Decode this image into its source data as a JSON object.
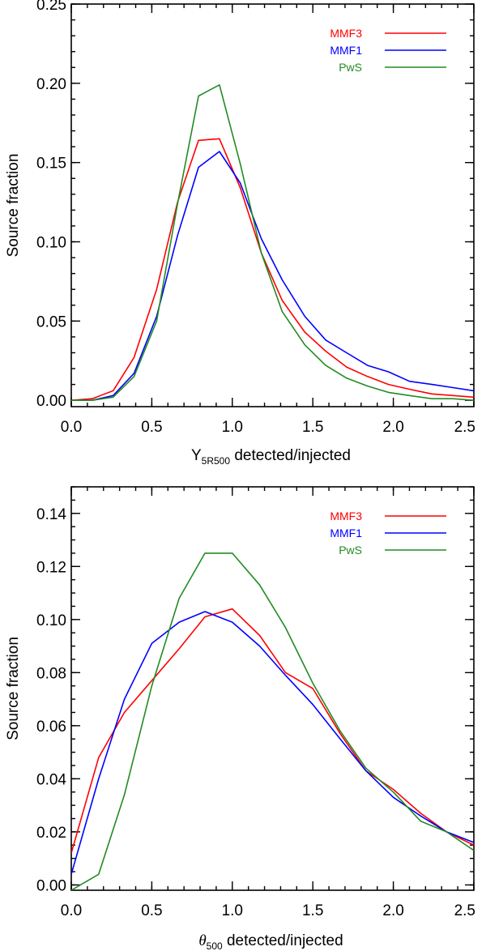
{
  "chart_data": [
    {
      "type": "line",
      "xlabel_main": "Y",
      "xlabel_sub": "5R500",
      "xlabel_rest": " detected/injected",
      "ylabel": "Source fraction",
      "xlim": [
        0.0,
        2.5
      ],
      "ylim": [
        -0.004,
        0.25
      ],
      "xticks": [
        0.0,
        0.5,
        1.0,
        1.5,
        2.0,
        2.5
      ],
      "xtick_labels": [
        "0.0",
        "0.5",
        "1.0",
        "1.5",
        "2.0",
        "2.5"
      ],
      "yticks": [
        0.0,
        0.05,
        0.1,
        0.15,
        0.2,
        0.25
      ],
      "ytick_labels": [
        "0.00",
        "0.05",
        "0.10",
        "0.15",
        "0.20",
        "0.25"
      ],
      "x_minor_step": 0.1,
      "y_minor_step": 0.01,
      "legend_position": "top-right",
      "series": [
        {
          "name": "MMF3",
          "color": "#ff0000",
          "x": [
            0.0,
            0.13,
            0.26,
            0.39,
            0.53,
            0.66,
            0.79,
            0.92,
            1.05,
            1.18,
            1.31,
            1.45,
            1.58,
            1.71,
            1.84,
            1.97,
            2.1,
            2.24,
            2.37,
            2.5
          ],
          "y": [
            0.0,
            0.001,
            0.006,
            0.027,
            0.07,
            0.125,
            0.164,
            0.165,
            0.134,
            0.093,
            0.063,
            0.043,
            0.031,
            0.021,
            0.015,
            0.01,
            0.007,
            0.004,
            0.003,
            0.002
          ]
        },
        {
          "name": "MMF1",
          "color": "#0000ff",
          "x": [
            0.0,
            0.13,
            0.26,
            0.39,
            0.53,
            0.66,
            0.79,
            0.92,
            1.05,
            1.18,
            1.31,
            1.45,
            1.58,
            1.71,
            1.84,
            1.97,
            2.1,
            2.24,
            2.37,
            2.5
          ],
          "y": [
            0.0,
            0.0,
            0.003,
            0.017,
            0.053,
            0.104,
            0.147,
            0.157,
            0.137,
            0.102,
            0.076,
            0.053,
            0.038,
            0.03,
            0.022,
            0.018,
            0.012,
            0.01,
            0.008,
            0.006
          ]
        },
        {
          "name": "PwS",
          "color": "#228b22",
          "x": [
            0.0,
            0.13,
            0.26,
            0.39,
            0.53,
            0.66,
            0.79,
            0.92,
            1.05,
            1.18,
            1.31,
            1.45,
            1.58,
            1.71,
            1.84,
            1.97,
            2.1,
            2.24,
            2.37,
            2.5
          ],
          "y": [
            0.0,
            0.0,
            0.002,
            0.015,
            0.05,
            0.124,
            0.192,
            0.199,
            0.149,
            0.093,
            0.056,
            0.035,
            0.022,
            0.014,
            0.009,
            0.005,
            0.003,
            0.001,
            0.001,
            0.0
          ]
        }
      ]
    },
    {
      "type": "line",
      "xlabel_main": "θ",
      "xlabel_sub": "500",
      "xlabel_rest": " detected/injected",
      "ylabel": "Source fraction",
      "xlim": [
        0.0,
        2.5
      ],
      "ylim": [
        -0.002,
        0.15
      ],
      "xticks": [
        0.0,
        0.5,
        1.0,
        1.5,
        2.0,
        2.5
      ],
      "xtick_labels": [
        "0.0",
        "0.5",
        "1.0",
        "1.5",
        "2.0",
        "2.5"
      ],
      "yticks": [
        0.0,
        0.02,
        0.04,
        0.06,
        0.08,
        0.1,
        0.12,
        0.14
      ],
      "ytick_labels": [
        "0.00",
        "0.02",
        "0.04",
        "0.06",
        "0.08",
        "0.10",
        "0.12",
        "0.14"
      ],
      "x_minor_step": 0.1,
      "y_minor_step": 0.005,
      "legend_position": "top-right",
      "series": [
        {
          "name": "MMF3",
          "color": "#ff0000",
          "x": [
            0.0,
            0.17,
            0.33,
            0.5,
            0.67,
            0.83,
            1.0,
            1.17,
            1.33,
            1.5,
            1.67,
            1.83,
            2.0,
            2.17,
            2.33,
            2.5
          ],
          "y": [
            0.012,
            0.048,
            0.065,
            0.077,
            0.089,
            0.101,
            0.104,
            0.094,
            0.08,
            0.074,
            0.057,
            0.043,
            0.036,
            0.027,
            0.02,
            0.015
          ]
        },
        {
          "name": "MMF1",
          "color": "#0000ff",
          "x": [
            0.0,
            0.17,
            0.33,
            0.5,
            0.67,
            0.83,
            1.0,
            1.17,
            1.33,
            1.5,
            1.67,
            1.83,
            2.0,
            2.17,
            2.33,
            2.5
          ],
          "y": [
            0.004,
            0.04,
            0.07,
            0.091,
            0.099,
            0.103,
            0.099,
            0.09,
            0.079,
            0.068,
            0.055,
            0.043,
            0.033,
            0.026,
            0.02,
            0.016
          ]
        },
        {
          "name": "PwS",
          "color": "#228b22",
          "x": [
            0.0,
            0.17,
            0.33,
            0.5,
            0.67,
            0.83,
            1.0,
            1.17,
            1.33,
            1.5,
            1.67,
            1.83,
            2.0,
            2.17,
            2.33,
            2.5
          ],
          "y": [
            -0.002,
            0.004,
            0.034,
            0.075,
            0.108,
            0.125,
            0.125,
            0.113,
            0.097,
            0.076,
            0.058,
            0.044,
            0.035,
            0.024,
            0.02,
            0.013
          ]
        }
      ]
    }
  ]
}
